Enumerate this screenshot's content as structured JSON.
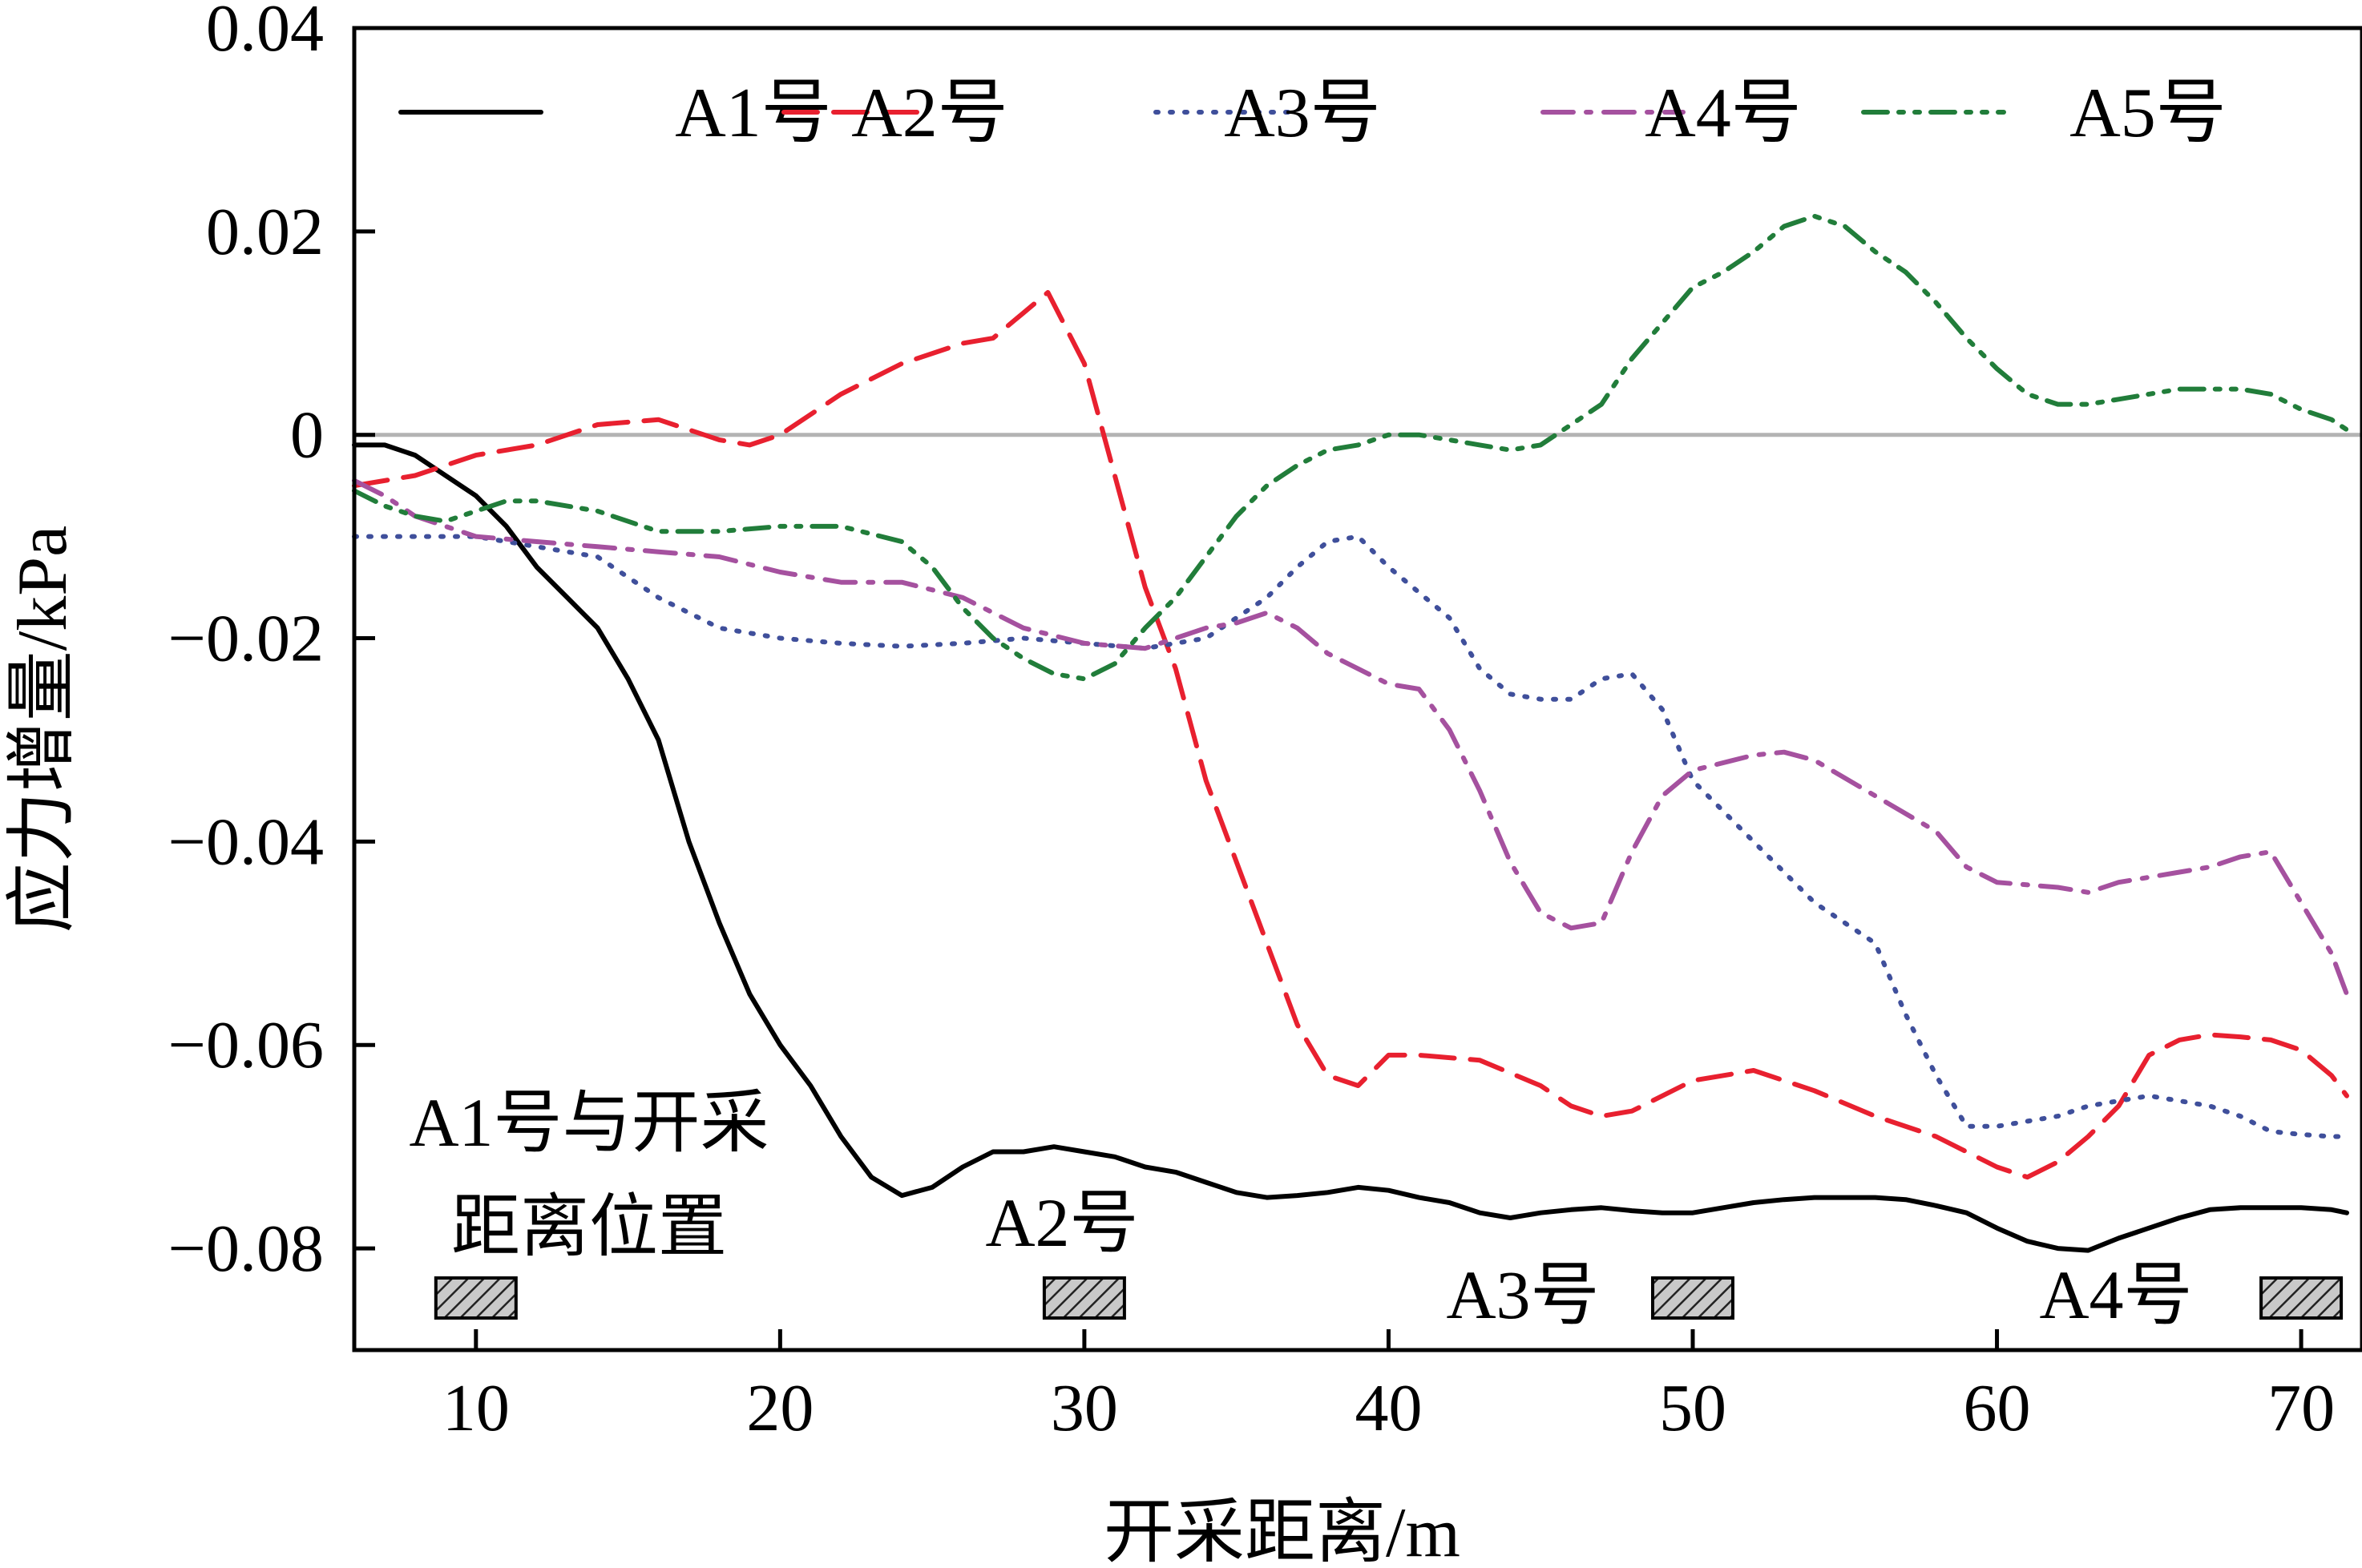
{
  "chart_data": {
    "type": "line",
    "title": "",
    "xlabel": "开采距离/m",
    "ylabel": "应力增量/kPa",
    "xlim": [
      6,
      72
    ],
    "ylim": [
      -0.09,
      0.04
    ],
    "x_ticks": [
      10,
      20,
      30,
      40,
      50,
      60,
      70
    ],
    "x_tick_labels": [
      "10",
      "20",
      "30",
      "40",
      "50",
      "60",
      "70"
    ],
    "y_ticks": [
      0.04,
      0.02,
      0,
      -0.02,
      -0.04,
      -0.06,
      -0.08
    ],
    "y_tick_labels": [
      "0.04",
      "0.02",
      "0",
      "−0.02",
      "−0.04",
      "−0.06",
      "−0.08"
    ],
    "reference_line": {
      "y": 0,
      "color": "#b3b3b3"
    },
    "grid": false,
    "legend_position": "top",
    "series": [
      {
        "name": "A1号",
        "color": "#000000",
        "dash": "solid",
        "points": [
          [
            6,
            -0.001
          ],
          [
            7,
            -0.001
          ],
          [
            8,
            -0.002
          ],
          [
            9,
            -0.004
          ],
          [
            10,
            -0.006
          ],
          [
            11,
            -0.009
          ],
          [
            12,
            -0.013
          ],
          [
            13,
            -0.016
          ],
          [
            14,
            -0.019
          ],
          [
            15,
            -0.024
          ],
          [
            16,
            -0.03
          ],
          [
            17,
            -0.04
          ],
          [
            18,
            -0.048
          ],
          [
            19,
            -0.055
          ],
          [
            20,
            -0.06
          ],
          [
            21,
            -0.064
          ],
          [
            22,
            -0.069
          ],
          [
            23,
            -0.073
          ],
          [
            24,
            -0.0748
          ],
          [
            25,
            -0.074
          ],
          [
            26,
            -0.072
          ],
          [
            27,
            -0.0705
          ],
          [
            28,
            -0.0705
          ],
          [
            29,
            -0.07
          ],
          [
            30,
            -0.0705
          ],
          [
            31,
            -0.071
          ],
          [
            32,
            -0.072
          ],
          [
            33,
            -0.0725
          ],
          [
            34,
            -0.0735
          ],
          [
            35,
            -0.0745
          ],
          [
            36,
            -0.075
          ],
          [
            37,
            -0.0748
          ],
          [
            38,
            -0.0745
          ],
          [
            39,
            -0.074
          ],
          [
            40,
            -0.0743
          ],
          [
            41,
            -0.075
          ],
          [
            42,
            -0.0755
          ],
          [
            43,
            -0.0765
          ],
          [
            44,
            -0.077
          ],
          [
            45,
            -0.0765
          ],
          [
            46,
            -0.0762
          ],
          [
            47,
            -0.076
          ],
          [
            48,
            -0.0763
          ],
          [
            49,
            -0.0765
          ],
          [
            50,
            -0.0765
          ],
          [
            51,
            -0.076
          ],
          [
            52,
            -0.0755
          ],
          [
            53,
            -0.0752
          ],
          [
            54,
            -0.075
          ],
          [
            55,
            -0.075
          ],
          [
            56,
            -0.075
          ],
          [
            57,
            -0.0752
          ],
          [
            58,
            -0.0758
          ],
          [
            59,
            -0.0765
          ],
          [
            60,
            -0.078
          ],
          [
            61,
            -0.0793
          ],
          [
            62,
            -0.08
          ],
          [
            63,
            -0.0802
          ],
          [
            64,
            -0.079
          ],
          [
            65,
            -0.078
          ],
          [
            66,
            -0.077
          ],
          [
            67,
            -0.0762
          ],
          [
            68,
            -0.076
          ],
          [
            69,
            -0.076
          ],
          [
            70,
            -0.076
          ],
          [
            71,
            -0.0762
          ],
          [
            71.5,
            -0.0765
          ]
        ]
      },
      {
        "name": "A2号",
        "color": "#e8202f",
        "dash": "long-dash",
        "points": [
          [
            6,
            -0.005
          ],
          [
            8,
            -0.004
          ],
          [
            10,
            -0.002
          ],
          [
            12,
            -0.001
          ],
          [
            14,
            0.001
          ],
          [
            16,
            0.0015
          ],
          [
            18,
            -0.0005
          ],
          [
            19,
            -0.001
          ],
          [
            20,
            0.0
          ],
          [
            22,
            0.004
          ],
          [
            24,
            0.007
          ],
          [
            26,
            0.009
          ],
          [
            27,
            0.0095
          ],
          [
            28,
            0.012
          ],
          [
            28.8,
            0.014
          ],
          [
            30,
            0.007
          ],
          [
            31,
            -0.004
          ],
          [
            32,
            -0.015
          ],
          [
            33,
            -0.023
          ],
          [
            34,
            -0.034
          ],
          [
            35,
            -0.042
          ],
          [
            36,
            -0.05
          ],
          [
            37,
            -0.058
          ],
          [
            38,
            -0.063
          ],
          [
            39,
            -0.064
          ],
          [
            40,
            -0.061
          ],
          [
            41,
            -0.061
          ],
          [
            43,
            -0.0615
          ],
          [
            45,
            -0.064
          ],
          [
            46,
            -0.066
          ],
          [
            47,
            -0.067
          ],
          [
            48,
            -0.0665
          ],
          [
            50,
            -0.0635
          ],
          [
            52,
            -0.0625
          ],
          [
            54,
            -0.0645
          ],
          [
            56,
            -0.067
          ],
          [
            58,
            -0.069
          ],
          [
            60,
            -0.072
          ],
          [
            61,
            -0.073
          ],
          [
            62,
            -0.0715
          ],
          [
            63,
            -0.069
          ],
          [
            64,
            -0.066
          ],
          [
            65,
            -0.061
          ],
          [
            66,
            -0.0595
          ],
          [
            67,
            -0.059
          ],
          [
            68,
            -0.0592
          ],
          [
            69,
            -0.0595
          ],
          [
            70,
            -0.0605
          ],
          [
            71,
            -0.063
          ],
          [
            71.5,
            -0.065
          ]
        ]
      },
      {
        "name": "A3号",
        "color": "#3f4f9b",
        "dash": "dotted",
        "points": [
          [
            6,
            -0.01
          ],
          [
            8,
            -0.01
          ],
          [
            10,
            -0.01
          ],
          [
            12,
            -0.011
          ],
          [
            14,
            -0.012
          ],
          [
            16,
            -0.016
          ],
          [
            18,
            -0.019
          ],
          [
            20,
            -0.02
          ],
          [
            22,
            -0.0205
          ],
          [
            24,
            -0.0208
          ],
          [
            26,
            -0.0205
          ],
          [
            28,
            -0.02
          ],
          [
            30,
            -0.0205
          ],
          [
            32,
            -0.021
          ],
          [
            34,
            -0.02
          ],
          [
            36,
            -0.016
          ],
          [
            37,
            -0.013
          ],
          [
            38,
            -0.0105
          ],
          [
            39,
            -0.01
          ],
          [
            40,
            -0.013
          ],
          [
            42,
            -0.018
          ],
          [
            43,
            -0.023
          ],
          [
            44,
            -0.0255
          ],
          [
            45,
            -0.026
          ],
          [
            46,
            -0.026
          ],
          [
            47,
            -0.024
          ],
          [
            48,
            -0.0235
          ],
          [
            49,
            -0.027
          ],
          [
            50,
            -0.034
          ],
          [
            52,
            -0.04
          ],
          [
            54,
            -0.046
          ],
          [
            56,
            -0.05
          ],
          [
            57,
            -0.057
          ],
          [
            58,
            -0.063
          ],
          [
            59,
            -0.068
          ],
          [
            60,
            -0.068
          ],
          [
            61,
            -0.0675
          ],
          [
            62,
            -0.067
          ],
          [
            63,
            -0.066
          ],
          [
            64,
            -0.0655
          ],
          [
            65,
            -0.065
          ],
          [
            66,
            -0.0655
          ],
          [
            67,
            -0.066
          ],
          [
            68,
            -0.067
          ],
          [
            69,
            -0.0685
          ],
          [
            70,
            -0.0688
          ],
          [
            71,
            -0.069
          ],
          [
            71.5,
            -0.069
          ]
        ]
      },
      {
        "name": "A4号",
        "color": "#a5519f",
        "dash": "dash-dot",
        "points": [
          [
            6,
            -0.0045
          ],
          [
            7,
            -0.006
          ],
          [
            8,
            -0.008
          ],
          [
            9,
            -0.009
          ],
          [
            10,
            -0.01
          ],
          [
            12,
            -0.0105
          ],
          [
            14,
            -0.011
          ],
          [
            16,
            -0.0115
          ],
          [
            18,
            -0.012
          ],
          [
            20,
            -0.0135
          ],
          [
            22,
            -0.0145
          ],
          [
            24,
            -0.0145
          ],
          [
            26,
            -0.016
          ],
          [
            28,
            -0.019
          ],
          [
            30,
            -0.0205
          ],
          [
            32,
            -0.021
          ],
          [
            34,
            -0.019
          ],
          [
            35,
            -0.0185
          ],
          [
            36,
            -0.0175
          ],
          [
            37,
            -0.019
          ],
          [
            38,
            -0.0215
          ],
          [
            40,
            -0.0245
          ],
          [
            41,
            -0.025
          ],
          [
            42,
            -0.029
          ],
          [
            43,
            -0.035
          ],
          [
            44,
            -0.042
          ],
          [
            45,
            -0.047
          ],
          [
            46,
            -0.0485
          ],
          [
            47,
            -0.048
          ],
          [
            48,
            -0.041
          ],
          [
            49,
            -0.0355
          ],
          [
            50,
            -0.033
          ],
          [
            52,
            -0.0315
          ],
          [
            53,
            -0.0312
          ],
          [
            54,
            -0.032
          ],
          [
            56,
            -0.0355
          ],
          [
            58,
            -0.039
          ],
          [
            59,
            -0.0425
          ],
          [
            60,
            -0.044
          ],
          [
            62,
            -0.0445
          ],
          [
            63,
            -0.045
          ],
          [
            64,
            -0.044
          ],
          [
            66,
            -0.043
          ],
          [
            67,
            -0.0425
          ],
          [
            68,
            -0.0415
          ],
          [
            69,
            -0.041
          ],
          [
            70,
            -0.046
          ],
          [
            71,
            -0.051
          ],
          [
            71.5,
            -0.055
          ]
        ]
      },
      {
        "name": "A5号",
        "color": "#217d3a",
        "dash": "dash-dot-dot",
        "points": [
          [
            6,
            -0.0055
          ],
          [
            7,
            -0.007
          ],
          [
            8,
            -0.008
          ],
          [
            9,
            -0.0085
          ],
          [
            10,
            -0.0075
          ],
          [
            11,
            -0.0065
          ],
          [
            12,
            -0.0065
          ],
          [
            14,
            -0.0075
          ],
          [
            16,
            -0.0095
          ],
          [
            18,
            -0.0095
          ],
          [
            20,
            -0.009
          ],
          [
            22,
            -0.009
          ],
          [
            24,
            -0.0105
          ],
          [
            25,
            -0.013
          ],
          [
            26,
            -0.017
          ],
          [
            27,
            -0.02
          ],
          [
            28,
            -0.022
          ],
          [
            29,
            -0.0235
          ],
          [
            30,
            -0.024
          ],
          [
            31,
            -0.0225
          ],
          [
            32,
            -0.019
          ],
          [
            33,
            -0.016
          ],
          [
            34,
            -0.012
          ],
          [
            35,
            -0.008
          ],
          [
            36,
            -0.005
          ],
          [
            37,
            -0.003
          ],
          [
            38,
            -0.0015
          ],
          [
            39,
            -0.001
          ],
          [
            40,
            0.0
          ],
          [
            41,
            0.0
          ],
          [
            42,
            -0.0005
          ],
          [
            43,
            -0.001
          ],
          [
            44,
            -0.0015
          ],
          [
            45,
            -0.001
          ],
          [
            46,
            0.001
          ],
          [
            47,
            0.003
          ],
          [
            48,
            0.0075
          ],
          [
            49,
            0.011
          ],
          [
            50,
            0.0145
          ],
          [
            51,
            0.016
          ],
          [
            52,
            0.018
          ],
          [
            53,
            0.0205
          ],
          [
            54,
            0.0215
          ],
          [
            55,
            0.0205
          ],
          [
            56,
            0.018
          ],
          [
            57,
            0.016
          ],
          [
            58,
            0.013
          ],
          [
            59,
            0.0095
          ],
          [
            60,
            0.0065
          ],
          [
            61,
            0.004
          ],
          [
            62,
            0.003
          ],
          [
            63,
            0.003
          ],
          [
            64,
            0.0035
          ],
          [
            65,
            0.004
          ],
          [
            66,
            0.0045
          ],
          [
            67,
            0.0045
          ],
          [
            68,
            0.0045
          ],
          [
            69,
            0.004
          ],
          [
            70,
            0.0025
          ],
          [
            71,
            0.0015
          ],
          [
            71.5,
            0.0005
          ]
        ]
      }
    ],
    "markers": [
      {
        "label": "",
        "x": 10
      },
      {
        "label": "A2号",
        "x": 30
      },
      {
        "label": "A3号",
        "x": 50
      },
      {
        "label": "A4号",
        "x": 70
      }
    ],
    "annotation": [
      "A1号与开采",
      "距离位置"
    ]
  }
}
